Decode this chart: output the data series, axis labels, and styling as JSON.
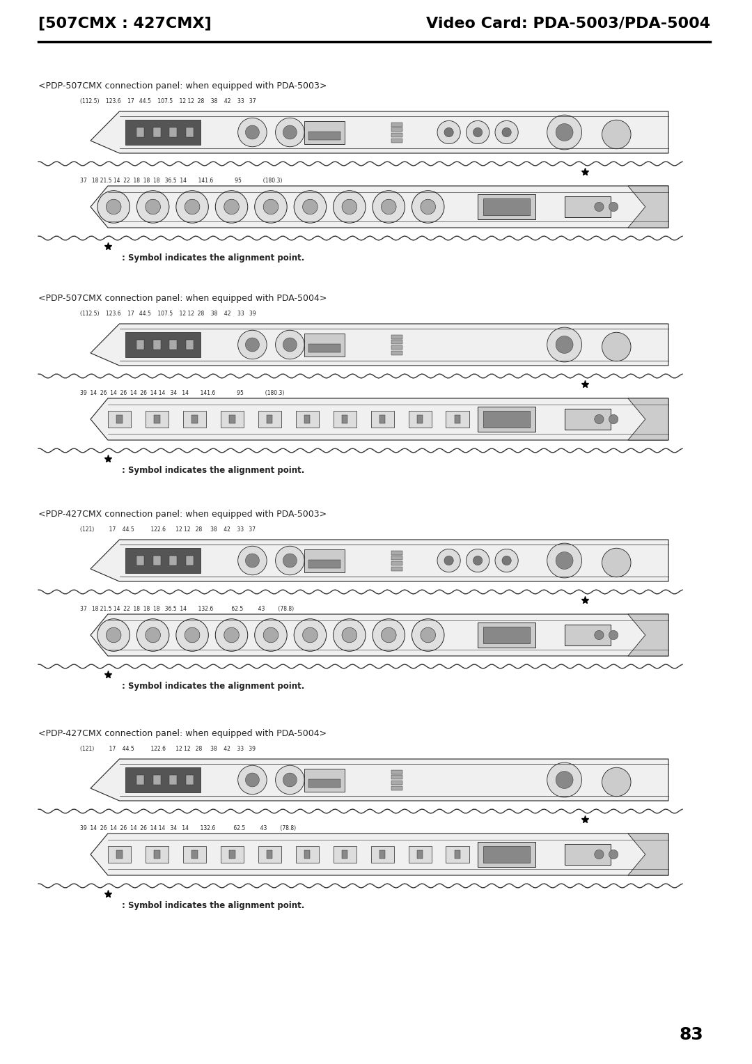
{
  "page_title_left": "[507CMX : 427CMX]",
  "page_title_right": "Video Card: PDA-5003/PDA-5004",
  "page_number": "83",
  "background_color": "#ffffff",
  "text_color": "#000000",
  "sections": [
    {
      "label": "<PDP-507CMX connection panel: when equipped with PDA-5003>",
      "top_dims": "(112.5)    123.6    17   44.5    107.5    12 12  28    38    42    33   37",
      "bot_dims": "37   18 21.5 14  22  18  18  18   36.5  14       141.6             95             (180.3)"
    },
    {
      "label": "<PDP-507CMX connection panel: when equipped with PDA-5004>",
      "top_dims": "(112.5)    123.6    17   44.5    107.5    12 12  28    38    42    33   39",
      "bot_dims": "39  14  26  14  26  14  26  14 14   34   14       141.6             95             (180.3)"
    },
    {
      "label": "<PDP-427CMX connection panel: when equipped with PDA-5003>",
      "top_dims": "(121)         17    44.5          122.6      12 12   28     38    42    33   37",
      "bot_dims": "37   18 21.5 14  22  18  18  18   36.5  14       132.6           62.5         43        (78.8)"
    },
    {
      "label": "<PDP-427CMX connection panel: when equipped with PDA-5004>",
      "top_dims": "(121)         17    44.5          122.6      12 12   28     38    42    33   39",
      "bot_dims": "39  14  26  14  26  14  26  14 14   34   14       132.6           62.5         43        (78.8)"
    }
  ],
  "alignment_note": ": Symbol indicates the alignment point."
}
